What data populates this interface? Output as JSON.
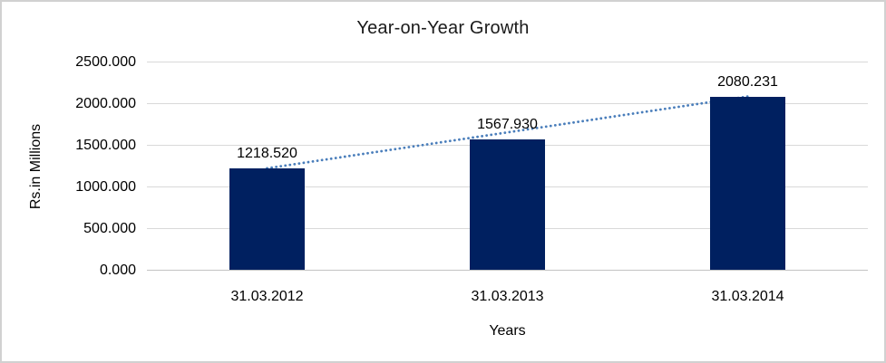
{
  "chart_data": {
    "type": "bar",
    "title": "Year-on-Year Growth",
    "xlabel": "Years",
    "ylabel": "Rs.in Millions",
    "categories": [
      "31.03.2012",
      "31.03.2013",
      "31.03.2014"
    ],
    "values": [
      1218.52,
      1567.93,
      2080.231
    ],
    "data_labels": [
      "1218.520",
      "1567.930",
      "2080.231"
    ],
    "ylim": [
      0,
      2500
    ],
    "ytick_step": 500,
    "ytick_labels": [
      "0.000",
      "500.000",
      "1000.000",
      "1500.000",
      "2000.000",
      "2500.000"
    ],
    "grid": true,
    "legend": "none",
    "trendline": {
      "type": "linear",
      "style": "dotted",
      "color": "#4a7ebb"
    },
    "colors": {
      "bar": "#002060",
      "gridline": "#d9d9d9",
      "axis_line": "#c3c3c3",
      "chart_border": "#d1d1d1",
      "text": "#000000",
      "background": "#ffffff"
    }
  }
}
